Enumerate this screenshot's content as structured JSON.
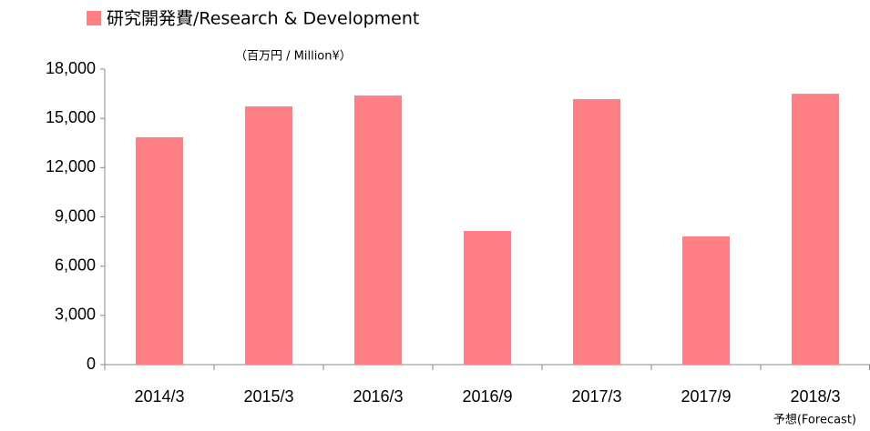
{
  "chart_data": {
    "type": "bar",
    "series": [
      {
        "name": "研究開発費/Research & Development",
        "color": "#ff7f86",
        "values": [
          13850,
          15730,
          16390,
          8140,
          16170,
          7810,
          16500
        ]
      }
    ],
    "categories": [
      "2014/3",
      "2015/3",
      "2016/3",
      "2016/9",
      "2017/3",
      "2017/9",
      "2018/3"
    ],
    "y_label": "（百万円 / Million¥）",
    "annotation": "予想(Forecast)",
    "ylim": [
      0,
      18000
    ],
    "yticks": [
      0,
      {
        "value": 3000,
        "label": "3,000"
      },
      {
        "value": 6000,
        "label": "6,000"
      },
      {
        "value": 9000,
        "label": "9,000"
      },
      {
        "value": 12000,
        "label": "12,000"
      },
      {
        "value": 15000,
        "label": "15,000"
      },
      {
        "value": 18000,
        "label": "18,000"
      }
    ],
    "grid": false
  }
}
